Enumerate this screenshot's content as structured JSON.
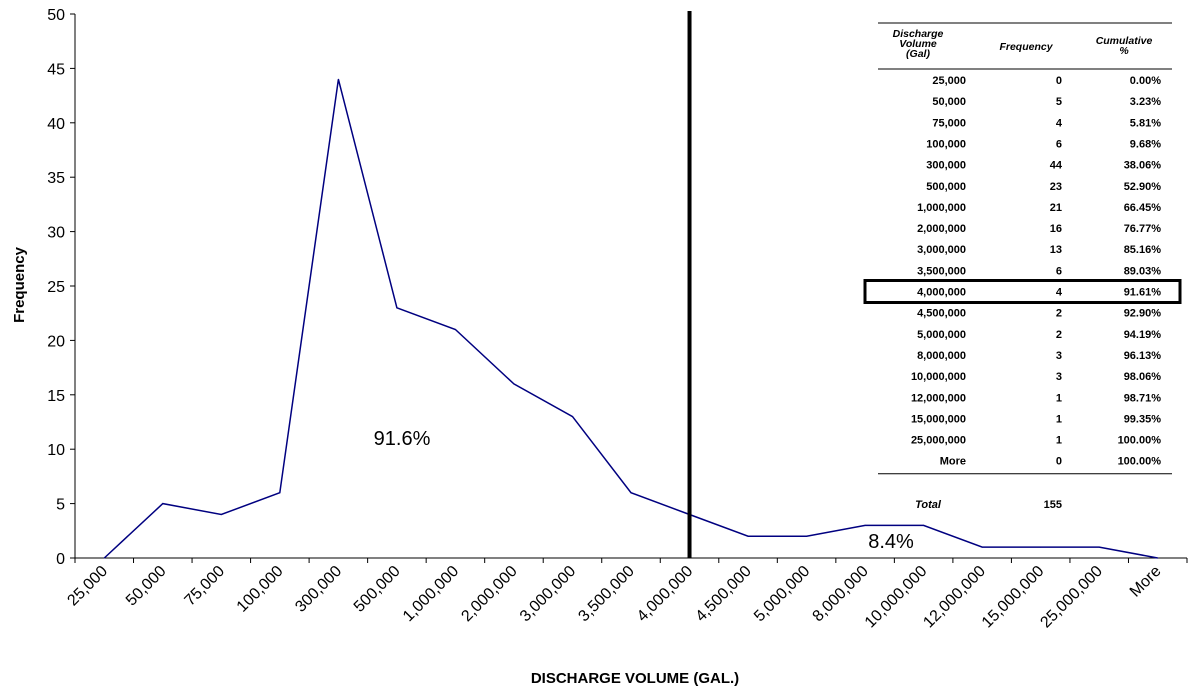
{
  "chart_data": {
    "type": "line",
    "xlabel": "DISCHARGE VOLUME (GAL.)",
    "ylabel": "Frequency",
    "categories": [
      "25,000",
      "50,000",
      "75,000",
      "100,000",
      "300,000",
      "500,000",
      "1,000,000",
      "2,000,000",
      "3,000,000",
      "3,500,000",
      "4,000,000",
      "4,500,000",
      "5,000,000",
      "8,000,000",
      "10,000,000",
      "12,000,000",
      "15,000,000",
      "25,000,000",
      "More"
    ],
    "series": [
      {
        "values": [
          0,
          5,
          4,
          6,
          44,
          23,
          21,
          16,
          13,
          6,
          4,
          2,
          2,
          3,
          3,
          1,
          1,
          1,
          0
        ],
        "color": "#000080"
      }
    ],
    "ylim": [
      0,
      50
    ],
    "yticks": [
      "0",
      "5",
      "10",
      "15",
      "20",
      "25",
      "30",
      "35",
      "40",
      "45",
      "50"
    ],
    "grid": false,
    "marker_category": "4,000,000",
    "annotations": {
      "left": "91.6%",
      "right": "8.4%"
    },
    "table": {
      "headers": {
        "volume": [
          "Discharge",
          "Volume",
          "(Gal)"
        ],
        "frequency": "Frequency",
        "cumulative": [
          "Cumulative",
          "%"
        ]
      },
      "rows": [
        [
          "25,000",
          "0",
          "0.00%"
        ],
        [
          "50,000",
          "5",
          "3.23%"
        ],
        [
          "75,000",
          "4",
          "5.81%"
        ],
        [
          "100,000",
          "6",
          "9.68%"
        ],
        [
          "300,000",
          "44",
          "38.06%"
        ],
        [
          "500,000",
          "23",
          "52.90%"
        ],
        [
          "1,000,000",
          "21",
          "66.45%"
        ],
        [
          "2,000,000",
          "16",
          "76.77%"
        ],
        [
          "3,000,000",
          "13",
          "85.16%"
        ],
        [
          "3,500,000",
          "6",
          "89.03%"
        ],
        [
          "4,000,000",
          "4",
          "91.61%"
        ],
        [
          "4,500,000",
          "2",
          "92.90%"
        ],
        [
          "5,000,000",
          "2",
          "94.19%"
        ],
        [
          "8,000,000",
          "3",
          "96.13%"
        ],
        [
          "10,000,000",
          "3",
          "98.06%"
        ],
        [
          "12,000,000",
          "1",
          "98.71%"
        ],
        [
          "15,000,000",
          "1",
          "99.35%"
        ],
        [
          "25,000,000",
          "1",
          "100.00%"
        ],
        [
          "More",
          "0",
          "100.00%"
        ]
      ],
      "highlighted_row": "4,000,000",
      "total_label": "Total",
      "total_value": "155"
    }
  }
}
